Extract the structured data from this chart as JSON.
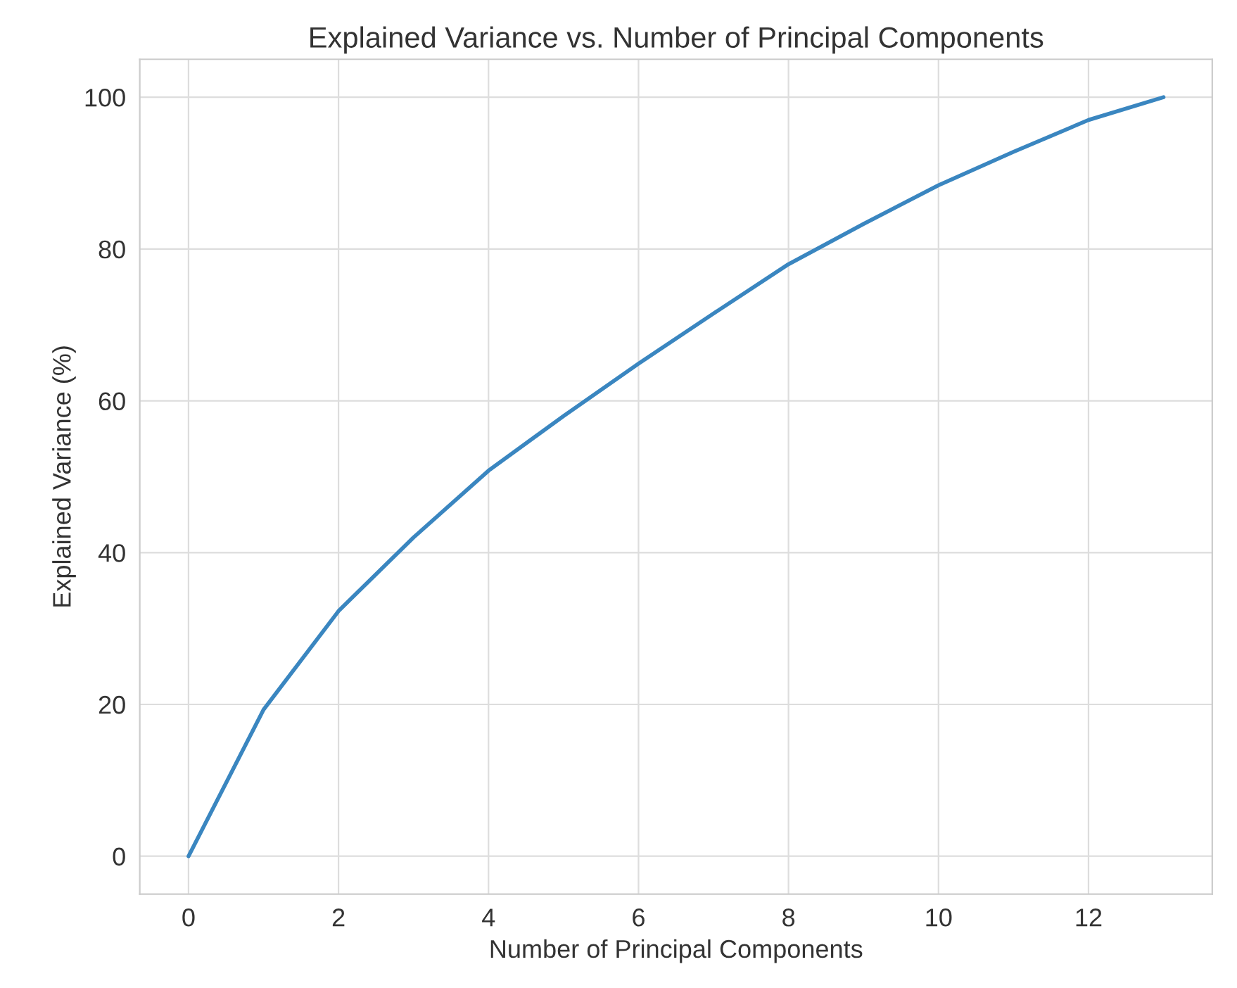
{
  "chart_data": {
    "type": "line",
    "title": "Explained Variance vs. Number of Principal Components",
    "xlabel": "Number of Principal Components",
    "ylabel": "Explained Variance (%)",
    "x": [
      0,
      1,
      2,
      3,
      4,
      5,
      6,
      7,
      8,
      9,
      10,
      11,
      12,
      13
    ],
    "series": [
      {
        "color": "#3a86c0",
        "values": [
          0,
          19.3,
          32.3,
          42,
          50.8,
          58,
          64.9,
          71.5,
          78,
          83.3,
          88.4,
          92.8,
          97,
          100
        ]
      }
    ],
    "xlim": [
      -0.65,
      13.65
    ],
    "ylim": [
      -5,
      105
    ],
    "xticks": [
      0,
      2,
      4,
      6,
      8,
      10,
      12
    ],
    "yticks": [
      0,
      20,
      40,
      60,
      80,
      100
    ],
    "grid": true,
    "marker": "none",
    "line_style": "solid"
  }
}
